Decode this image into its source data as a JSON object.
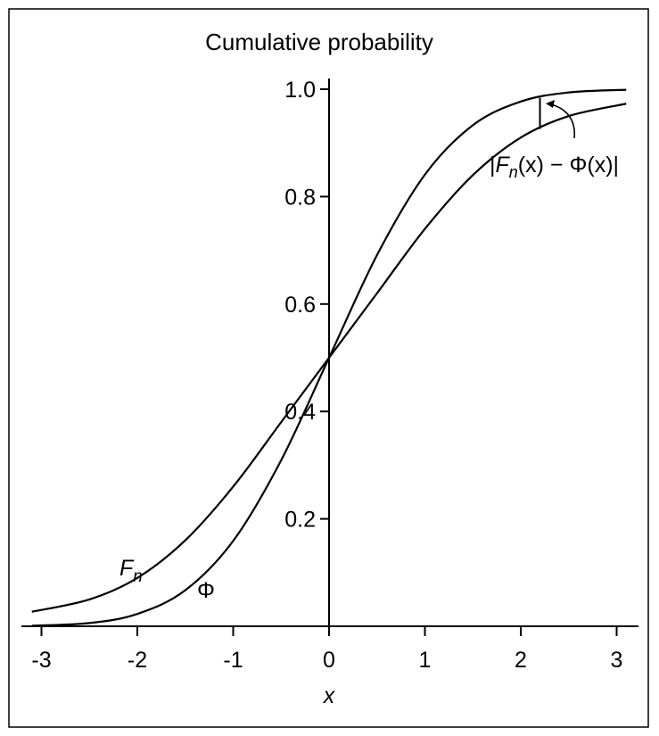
{
  "chart_data": {
    "type": "line",
    "title": "Cumulative probability",
    "xlabel": "x",
    "ylabel": "",
    "xlim": [
      -3.15,
      3.15
    ],
    "ylim": [
      0,
      1.0
    ],
    "x_ticks": [
      -3,
      -2,
      -1,
      0,
      1,
      2,
      3
    ],
    "x_tick_labels": [
      "-3",
      "-2",
      "-1",
      "0",
      "1",
      "2",
      "3"
    ],
    "y_ticks": [
      0.2,
      0.4,
      0.6,
      0.8,
      1.0
    ],
    "y_tick_labels": [
      "0.2",
      "0.4",
      "0.6",
      "0.8",
      "1.0"
    ],
    "grid": false,
    "series": [
      {
        "name": "Fn",
        "x": [
          -3.1,
          -2.5,
          -2.0,
          -1.5,
          -1.0,
          -0.5,
          0.0,
          0.5,
          1.0,
          1.5,
          2.0,
          2.5,
          3.1
        ],
        "y": [
          0.027,
          0.05,
          0.09,
          0.16,
          0.26,
          0.38,
          0.5,
          0.62,
          0.74,
          0.84,
          0.91,
          0.95,
          0.973
        ]
      },
      {
        "name": "Φ",
        "x": [
          -3.1,
          -2.5,
          -2.0,
          -1.5,
          -1.0,
          -0.5,
          0.0,
          0.5,
          1.0,
          1.5,
          2.0,
          2.5,
          3.1
        ],
        "y": [
          0.001,
          0.006,
          0.023,
          0.067,
          0.159,
          0.309,
          0.5,
          0.691,
          0.841,
          0.933,
          0.977,
          0.994,
          0.999
        ]
      }
    ],
    "annotations": {
      "fn_label": "F",
      "fn_subscript": "n",
      "phi_label": "Φ",
      "difference_label": "|Fn(x) − Φ(x)|",
      "diff_pre": "|",
      "diff_F": "F",
      "diff_n": "n",
      "diff_x1": "(x) − ",
      "diff_phi": "Φ",
      "diff_x2": "(x)|",
      "difference_at_x": 2.2
    }
  }
}
